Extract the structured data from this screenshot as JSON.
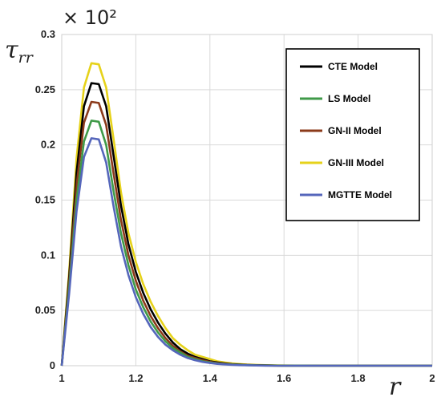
{
  "chart_data": {
    "type": "line",
    "scale_factor": "× 10²",
    "ylabel": "τ",
    "ylabel_sub": "rr",
    "xlabel": "r",
    "xlim": [
      1,
      2
    ],
    "ylim": [
      0,
      0.3
    ],
    "x_ticks": [
      "1",
      "1.2",
      "1.4",
      "1.6",
      "1.8",
      "2"
    ],
    "y_ticks": [
      "0",
      "0.05",
      "0.1",
      "0.15",
      "0.2",
      "0.25",
      "0.3"
    ],
    "grid": true,
    "legend_position": "top-right",
    "x": [
      1.0,
      1.02,
      1.04,
      1.06,
      1.08,
      1.1,
      1.12,
      1.14,
      1.16,
      1.18,
      1.2,
      1.22,
      1.24,
      1.26,
      1.28,
      1.3,
      1.32,
      1.34,
      1.36,
      1.38,
      1.4,
      1.42,
      1.44,
      1.46,
      1.48,
      1.5,
      1.55,
      1.6,
      1.7,
      1.8,
      2.0
    ],
    "series": [
      {
        "name": "CTE Model",
        "color": "#000000",
        "values": [
          0.0,
          0.08,
          0.175,
          0.235,
          0.256,
          0.255,
          0.235,
          0.19,
          0.145,
          0.11,
          0.085,
          0.066,
          0.051,
          0.039,
          0.029,
          0.021,
          0.015,
          0.011,
          0.008,
          0.006,
          0.004,
          0.003,
          0.002,
          0.0014,
          0.001,
          0.0007,
          0.0003,
          0.0001,
          0.0,
          0.0,
          0.0
        ]
      },
      {
        "name": "LS Model",
        "color": "#3f9a48",
        "values": [
          0.0,
          0.07,
          0.15,
          0.203,
          0.222,
          0.221,
          0.2,
          0.158,
          0.12,
          0.091,
          0.069,
          0.053,
          0.04,
          0.03,
          0.022,
          0.016,
          0.012,
          0.008,
          0.006,
          0.004,
          0.003,
          0.002,
          0.0014,
          0.001,
          0.0007,
          0.0005,
          0.0002,
          0.0001,
          0.0,
          0.0,
          0.0
        ]
      },
      {
        "name": "GN-II Model",
        "color": "#8b3a1a",
        "values": [
          0.0,
          0.075,
          0.163,
          0.22,
          0.239,
          0.238,
          0.218,
          0.174,
          0.132,
          0.1,
          0.077,
          0.059,
          0.045,
          0.034,
          0.025,
          0.018,
          0.013,
          0.009,
          0.007,
          0.005,
          0.0035,
          0.0025,
          0.0017,
          0.0012,
          0.0008,
          0.0006,
          0.0002,
          0.0001,
          0.0,
          0.0,
          0.0
        ]
      },
      {
        "name": "GN-III Model",
        "color": "#e6d21a",
        "values": [
          0.0,
          0.085,
          0.188,
          0.252,
          0.274,
          0.273,
          0.252,
          0.205,
          0.157,
          0.12,
          0.094,
          0.074,
          0.058,
          0.045,
          0.034,
          0.025,
          0.019,
          0.014,
          0.01,
          0.008,
          0.006,
          0.004,
          0.003,
          0.002,
          0.0015,
          0.001,
          0.0005,
          0.0002,
          0.0,
          0.0,
          0.0
        ]
      },
      {
        "name": "MGTTE Model",
        "color": "#5566bb",
        "values": [
          0.0,
          0.065,
          0.14,
          0.189,
          0.206,
          0.205,
          0.184,
          0.144,
          0.108,
          0.082,
          0.062,
          0.047,
          0.035,
          0.026,
          0.019,
          0.014,
          0.01,
          0.007,
          0.005,
          0.0035,
          0.0025,
          0.0017,
          0.0012,
          0.0008,
          0.0005,
          0.0004,
          0.0001,
          0.0,
          0.0,
          0.0,
          0.0
        ]
      }
    ]
  }
}
